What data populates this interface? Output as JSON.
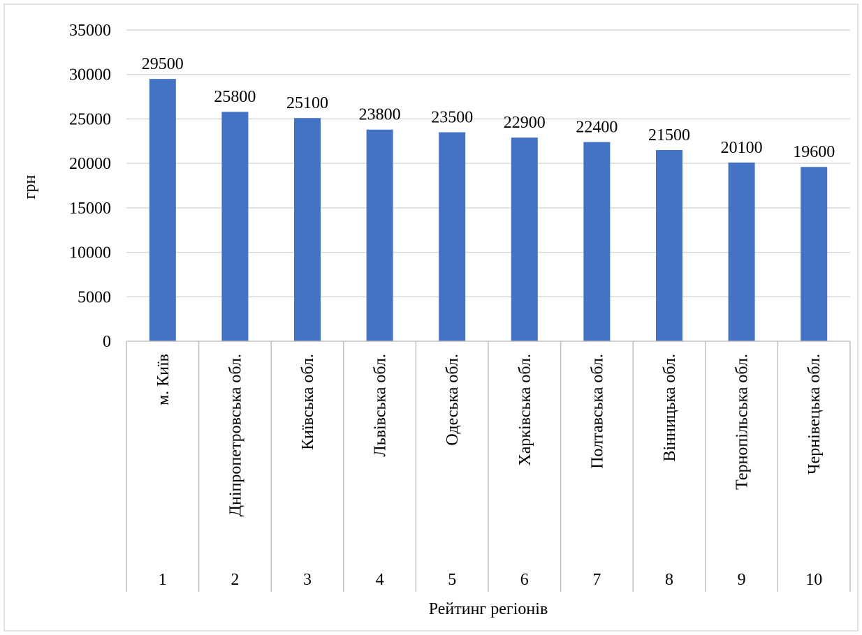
{
  "chart_data": {
    "type": "bar",
    "title": "",
    "xlabel": "Рейтинг регіонів",
    "ylabel": "грн",
    "ylim": [
      0,
      35000
    ],
    "y_ticks": [
      0,
      5000,
      10000,
      15000,
      20000,
      25000,
      30000,
      35000
    ],
    "grid": true,
    "legend": "none",
    "bar_color": "#4472C4",
    "ranks": [
      "1",
      "2",
      "3",
      "4",
      "5",
      "6",
      "7",
      "8",
      "9",
      "10"
    ],
    "categories": [
      "м. Київ",
      "Дніпропетровська обл.",
      "Київська обл.",
      "Львівська обл.",
      "Одеська обл.",
      "Харківська обл.",
      "Полтавська обл.",
      "Вінницька обл.",
      "Тернопільська обл.",
      "Чернівецька обл."
    ],
    "values": [
      29500,
      25800,
      25100,
      23800,
      23500,
      22900,
      22400,
      21500,
      20100,
      19600
    ]
  }
}
